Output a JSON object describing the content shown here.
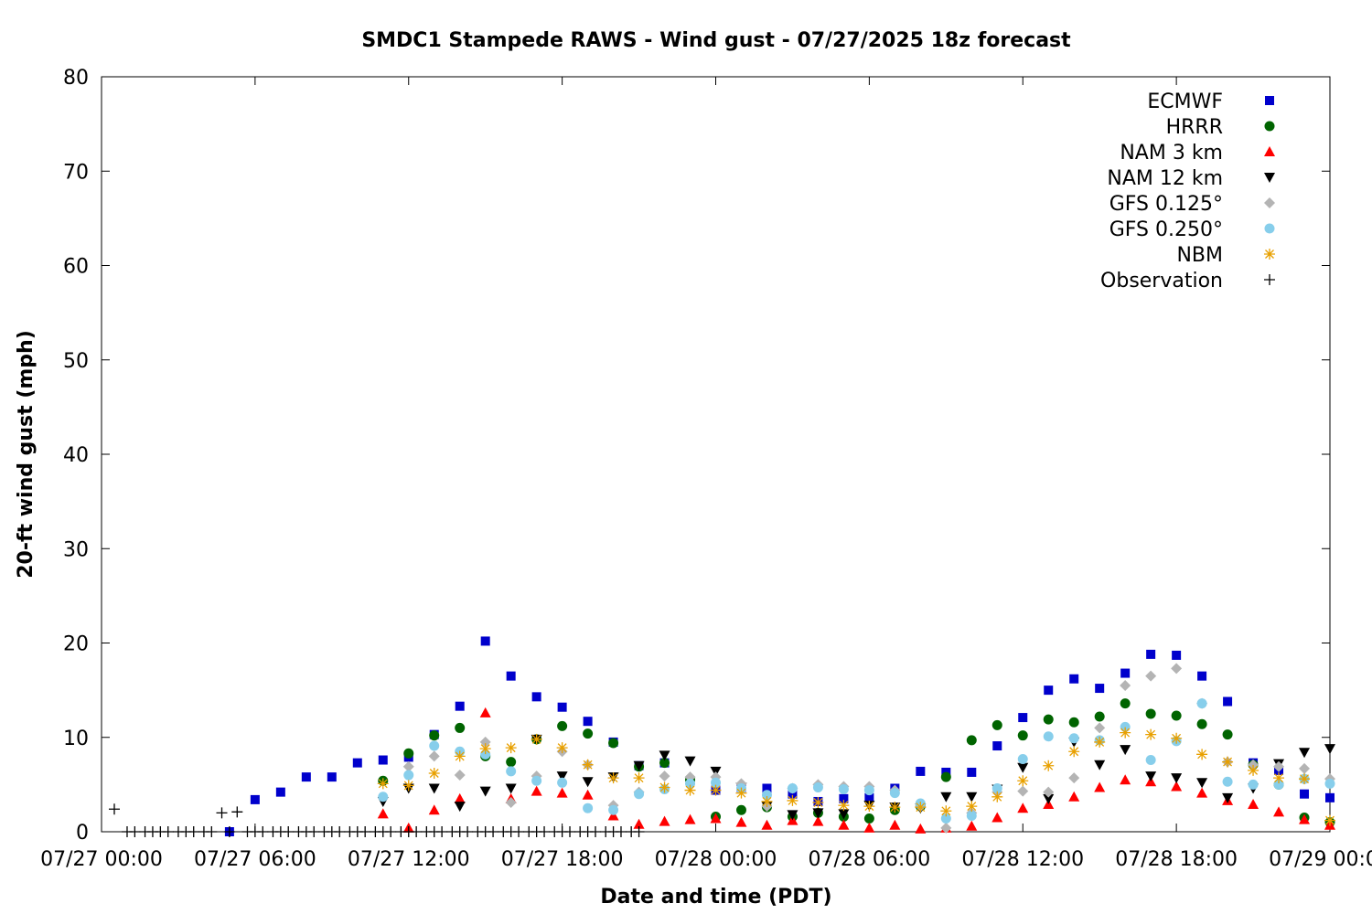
{
  "chart_data": {
    "type": "scatter",
    "title": "SMDC1 Stampede RAWS - Wind gust - 07/27/2025 18z forecast",
    "xlabel": "Date and time (PDT)",
    "ylabel": "20-ft wind gust (mph)",
    "x_unit": "hours since 07/27 00:00 PDT",
    "xlim": [
      0,
      48
    ],
    "ylim": [
      0,
      80
    ],
    "yticks": [
      0,
      10,
      20,
      30,
      40,
      50,
      60,
      70,
      80
    ],
    "xticks": [
      {
        "x": 0,
        "label": "07/27 00:00"
      },
      {
        "x": 6,
        "label": "07/27 06:00"
      },
      {
        "x": 12,
        "label": "07/27 12:00"
      },
      {
        "x": 18,
        "label": "07/27 18:00"
      },
      {
        "x": 24,
        "label": "07/28 00:00"
      },
      {
        "x": 30,
        "label": "07/28 06:00"
      },
      {
        "x": 36,
        "label": "07/28 12:00"
      },
      {
        "x": 42,
        "label": "07/28 18:00"
      },
      {
        "x": 48,
        "label": "07/29 00:00"
      }
    ],
    "legend_position": "top-right",
    "series": [
      {
        "name": "ECMWF",
        "marker": "square",
        "color": "#0000cc",
        "x": [
          5,
          6,
          7,
          8,
          9,
          10,
          11,
          12,
          13,
          14,
          15,
          16,
          17,
          18,
          19,
          20,
          21,
          22,
          23,
          24,
          25,
          26,
          27,
          28,
          29,
          30,
          31,
          32,
          33,
          34,
          35,
          36,
          37,
          38,
          39,
          40,
          41,
          42,
          43,
          44,
          45,
          46,
          47,
          48
        ],
        "y": [
          0,
          3.4,
          4.2,
          5.8,
          5.8,
          7.3,
          7.6,
          7.9,
          10.3,
          13.3,
          20.2,
          16.5,
          14.3,
          13.2,
          11.7,
          9.5,
          7.0,
          7.3,
          5.4,
          4.4,
          4.7,
          4.6,
          4.0,
          3.2,
          3.5,
          3.6,
          4.6,
          6.4,
          6.3,
          6.3,
          9.1,
          12.1,
          15.0,
          16.2,
          15.2,
          16.8,
          18.8,
          18.7,
          16.5,
          13.8,
          7.3,
          6.5,
          4.0,
          3.6
        ]
      },
      {
        "name": "HRRR",
        "marker": "circle",
        "color": "#006400",
        "x": [
          11,
          12,
          13,
          14,
          15,
          16,
          17,
          18,
          19,
          20,
          21,
          22,
          23,
          24,
          25,
          26,
          27,
          28,
          29,
          30,
          31,
          32,
          33,
          34,
          35,
          36,
          37,
          38,
          39,
          40,
          41,
          42,
          43,
          44,
          45,
          46,
          47,
          48
        ],
        "y": [
          5.4,
          8.3,
          10.2,
          11.0,
          8.0,
          7.4,
          9.8,
          11.2,
          10.4,
          9.4,
          6.9,
          7.3,
          5.5,
          1.6,
          2.3,
          2.6,
          1.6,
          2.0,
          1.6,
          1.4,
          2.3,
          2.7,
          5.8,
          9.7,
          11.3,
          10.2,
          11.9,
          11.6,
          12.2,
          13.6,
          12.5,
          12.3,
          11.4,
          10.3,
          7.1,
          5.0,
          1.5,
          1.0
        ]
      },
      {
        "name": "NAM 3 km",
        "marker": "triangle-up",
        "color": "#ff0000",
        "x": [
          11,
          12,
          13,
          14,
          15,
          16,
          17,
          18,
          19,
          20,
          21,
          22,
          23,
          24,
          25,
          26,
          27,
          28,
          29,
          30,
          31,
          32,
          33,
          34,
          35,
          36,
          37,
          38,
          39,
          40,
          41,
          42,
          43,
          44,
          45,
          46,
          47,
          48
        ],
        "y": [
          1.9,
          0.4,
          2.3,
          3.5,
          12.6,
          3.5,
          4.3,
          4.1,
          3.9,
          1.7,
          0.8,
          1.1,
          1.3,
          1.4,
          1.0,
          0.7,
          1.2,
          1.1,
          0.7,
          0.4,
          0.7,
          0.3,
          0.4,
          0.6,
          1.5,
          2.5,
          2.9,
          3.7,
          4.7,
          5.5,
          5.3,
          4.8,
          4.1,
          3.3,
          2.9,
          2.1,
          1.3,
          0.7
        ]
      },
      {
        "name": "NAM 12 km",
        "marker": "triangle-down",
        "color": "#000000",
        "x": [
          11,
          12,
          13,
          14,
          15,
          16,
          17,
          18,
          19,
          20,
          21,
          22,
          23,
          24,
          25,
          26,
          27,
          28,
          29,
          30,
          31,
          32,
          33,
          34,
          35,
          36,
          37,
          38,
          39,
          40,
          41,
          42,
          43,
          44,
          45,
          46,
          47,
          48
        ],
        "y": [
          3.2,
          4.6,
          4.6,
          2.7,
          4.3,
          4.6,
          9.8,
          5.9,
          5.3,
          5.8,
          7.0,
          8.1,
          7.5,
          6.4,
          4.7,
          2.7,
          1.8,
          2.0,
          1.9,
          2.8,
          2.6,
          2.5,
          3.7,
          3.7,
          4.5,
          6.8,
          3.5,
          9.5,
          7.1,
          8.7,
          5.9,
          5.7,
          5.2,
          3.6,
          4.6,
          7.2,
          8.4,
          8.8
        ]
      },
      {
        "name": "GFS 0.125°",
        "marker": "diamond",
        "color": "#b4b4b4",
        "x": [
          12,
          13,
          14,
          15,
          16,
          17,
          18,
          19,
          20,
          21,
          22,
          23,
          24,
          25,
          26,
          27,
          28,
          29,
          30,
          31,
          32,
          33,
          34,
          35,
          36,
          37,
          38,
          39,
          40,
          41,
          42,
          43,
          44,
          45,
          46,
          47,
          48
        ],
        "y": [
          6.9,
          8.0,
          6.0,
          9.5,
          3.1,
          5.9,
          8.5,
          7.1,
          2.8,
          4.2,
          5.9,
          5.8,
          5.8,
          5.1,
          2.7,
          4.6,
          5.0,
          4.8,
          4.8,
          4.4,
          2.7,
          0.4,
          2.0,
          4.2,
          4.3,
          4.2,
          5.7,
          11.0,
          15.5,
          16.5,
          17.3,
          13.6,
          7.4,
          7.1,
          6.9,
          6.7,
          5.6
        ]
      },
      {
        "name": "GFS 0.250°",
        "marker": "circle",
        "color": "#87ceeb",
        "x": [
          11,
          12,
          13,
          14,
          15,
          16,
          17,
          18,
          19,
          20,
          21,
          22,
          23,
          24,
          25,
          26,
          27,
          28,
          29,
          30,
          31,
          32,
          33,
          34,
          35,
          36,
          37,
          38,
          39,
          40,
          41,
          42,
          43,
          44,
          45,
          46,
          47,
          48
        ],
        "y": [
          3.7,
          6.0,
          9.1,
          8.5,
          8.2,
          6.4,
          5.4,
          5.2,
          2.5,
          2.3,
          4.0,
          4.5,
          5.1,
          5.2,
          4.6,
          3.9,
          4.6,
          4.7,
          4.5,
          4.4,
          4.1,
          3.0,
          1.4,
          1.7,
          4.6,
          7.7,
          10.1,
          9.9,
          9.7,
          11.1,
          7.6,
          9.6,
          13.6,
          5.3,
          5.0,
          5.0,
          5.6,
          5.1
        ]
      },
      {
        "name": "NBM",
        "marker": "asterisk",
        "color": "#e8a000",
        "x": [
          11,
          12,
          13,
          14,
          15,
          16,
          17,
          18,
          19,
          20,
          21,
          22,
          23,
          24,
          25,
          26,
          27,
          28,
          29,
          30,
          31,
          32,
          33,
          34,
          35,
          36,
          37,
          38,
          39,
          40,
          41,
          42,
          43,
          44,
          45,
          46,
          47,
          48
        ],
        "y": [
          5.1,
          4.9,
          6.2,
          8.0,
          8.8,
          8.9,
          9.8,
          8.9,
          7.1,
          5.7,
          5.7,
          4.7,
          4.4,
          4.4,
          4.1,
          3.2,
          3.3,
          3.1,
          2.8,
          2.7,
          2.6,
          2.6,
          2.2,
          2.7,
          3.7,
          5.4,
          7.0,
          8.5,
          9.5,
          10.5,
          10.3,
          9.9,
          8.2,
          7.4,
          6.5,
          5.7,
          5.6,
          1.2
        ]
      },
      {
        "name": "Observation",
        "marker": "plus",
        "color": "#000000",
        "x": [
          0.5,
          1,
          1.3,
          1.7,
          2,
          2.3,
          2.6,
          3,
          3.3,
          3.6,
          4,
          4.3,
          4.7,
          5,
          5.3,
          5.7,
          6,
          6.3,
          6.7,
          7,
          7.3,
          7.7,
          8,
          8.3,
          8.7,
          9,
          9.3,
          9.7,
          10,
          10.3,
          10.7,
          11,
          11.3,
          11.7,
          12,
          12.3,
          12.7,
          13,
          13.3,
          13.7,
          14,
          14.3,
          14.7,
          15,
          15.3,
          15.7,
          16,
          16.3,
          16.7,
          17,
          17.3,
          17.7,
          18,
          18.3,
          18.7,
          19,
          19.3,
          19.7,
          20,
          20.3,
          20.7,
          21
        ],
        "y": [
          2.4,
          0,
          0,
          0,
          0,
          0,
          0,
          0,
          0,
          0,
          0,
          0,
          2.0,
          0,
          2.1,
          0,
          0,
          0,
          0,
          0,
          0,
          0,
          0,
          0,
          0,
          0,
          0,
          0,
          0,
          0,
          0,
          0,
          0,
          0,
          0,
          0,
          0,
          0,
          0,
          0,
          0,
          0,
          0,
          0,
          0,
          0,
          0,
          0,
          0,
          0,
          0,
          0,
          0,
          0,
          0,
          0,
          0,
          0,
          0,
          0,
          0,
          0
        ],
        "note_hidden": false
      }
    ]
  }
}
